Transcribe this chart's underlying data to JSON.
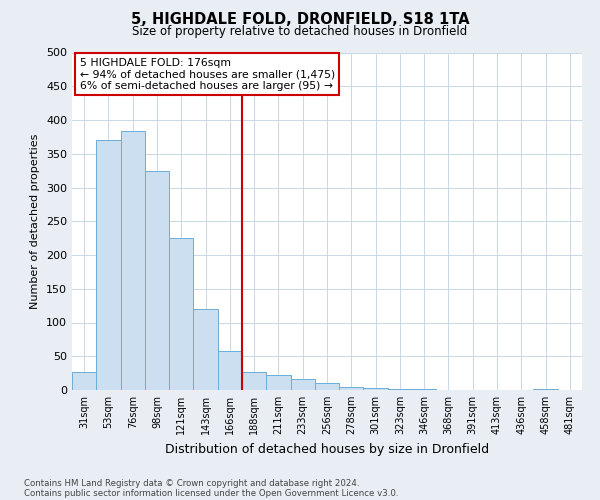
{
  "title": "5, HIGHDALE FOLD, DRONFIELD, S18 1TA",
  "subtitle": "Size of property relative to detached houses in Dronfield",
  "xlabel": "Distribution of detached houses by size in Dronfield",
  "ylabel": "Number of detached properties",
  "bar_labels": [
    "31sqm",
    "53sqm",
    "76sqm",
    "98sqm",
    "121sqm",
    "143sqm",
    "166sqm",
    "188sqm",
    "211sqm",
    "233sqm",
    "256sqm",
    "278sqm",
    "301sqm",
    "323sqm",
    "346sqm",
    "368sqm",
    "391sqm",
    "413sqm",
    "436sqm",
    "458sqm",
    "481sqm"
  ],
  "bar_values": [
    27,
    370,
    383,
    325,
    225,
    120,
    58,
    27,
    22,
    16,
    10,
    5,
    3,
    1,
    1,
    0,
    0,
    0,
    0,
    2,
    0
  ],
  "bar_color": "#ccdff0",
  "bar_edge_color": "#6aaed6",
  "vline_color": "#cc0000",
  "ylim": [
    0,
    500
  ],
  "yticks": [
    0,
    50,
    100,
    150,
    200,
    250,
    300,
    350,
    400,
    450,
    500
  ],
  "annotation_title": "5 HIGHDALE FOLD: 176sqm",
  "annotation_line1": "← 94% of detached houses are smaller (1,475)",
  "annotation_line2": "6% of semi-detached houses are larger (95) →",
  "annotation_box_color": "#cc0000",
  "footnote1": "Contains HM Land Registry data © Crown copyright and database right 2024.",
  "footnote2": "Contains public sector information licensed under the Open Government Licence v3.0.",
  "background_color": "#e8eef4",
  "plot_bg_color": "#ffffff",
  "grid_color": "#c8d8e8"
}
